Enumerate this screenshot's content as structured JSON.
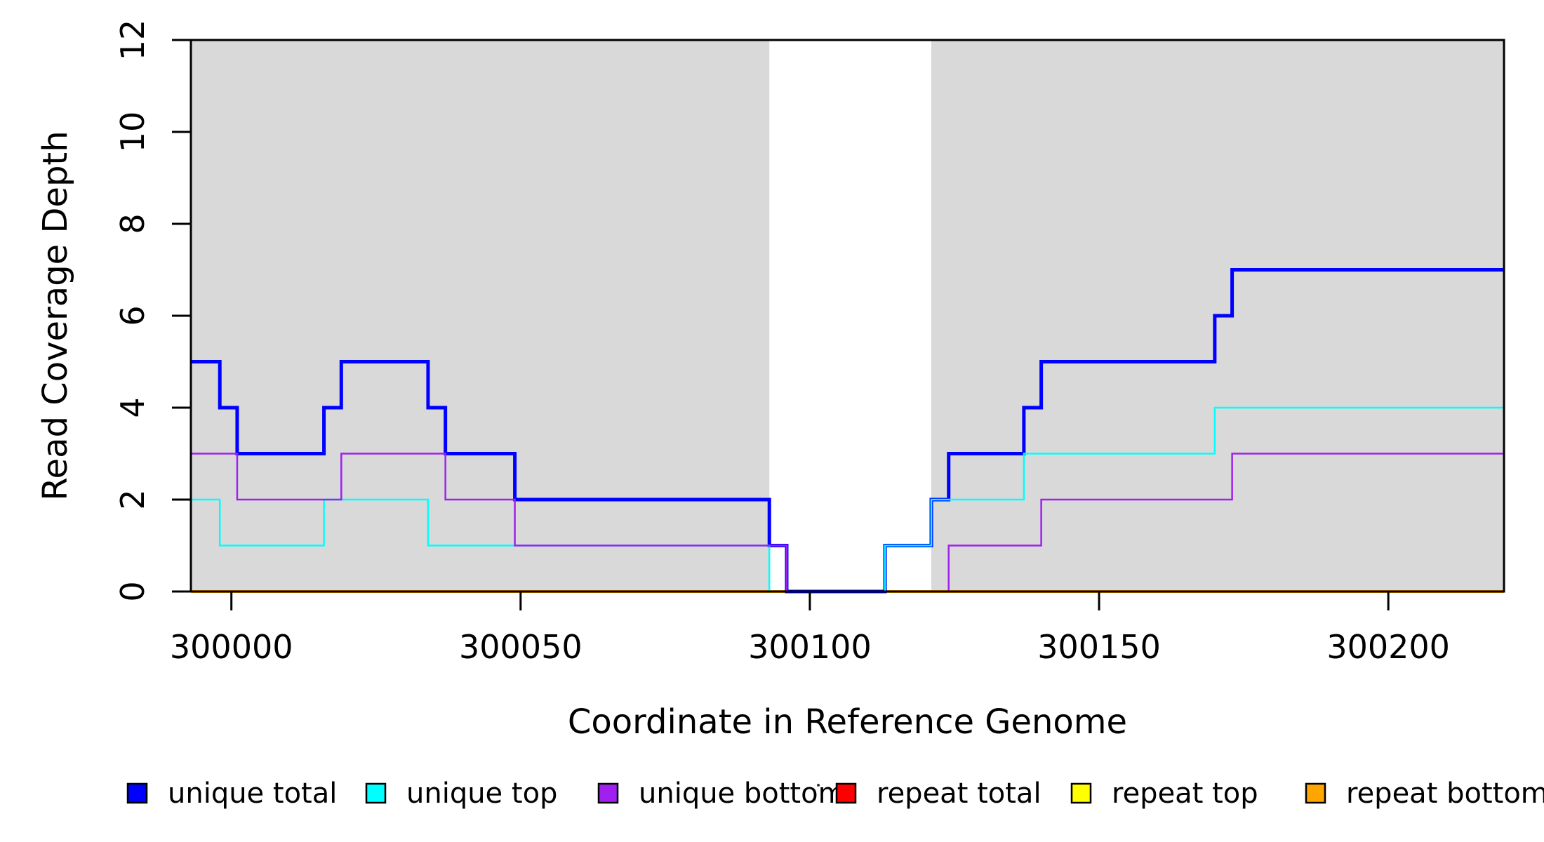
{
  "figure": {
    "background_color": "#FFFFFF",
    "panel_color": "#D9D9D9",
    "axis_color": "#000000"
  },
  "chart_data": {
    "type": "line",
    "style": "step",
    "title": "",
    "xlabel": "Coordinate in Reference Genome",
    "ylabel": "Read Coverage Depth",
    "x_range": [
      299993,
      300220
    ],
    "y_range": [
      0,
      12
    ],
    "x_ticks": [
      300000,
      300050,
      300100,
      300150,
      300200
    ],
    "y_ticks": [
      0,
      2,
      4,
      6,
      8,
      10,
      12
    ],
    "grid": false,
    "legend_position": "bottom",
    "shaded_regions": [
      {
        "x0": 299993,
        "x1": 300093
      },
      {
        "x0": 300121,
        "x1": 300220
      }
    ],
    "draw_order": [
      3,
      4,
      5,
      0,
      1,
      2
    ],
    "series": [
      {
        "name": "unique total",
        "color": "#0000FF",
        "line_width": 5,
        "steps": [
          [
            299993,
            5
          ],
          [
            299998,
            4
          ],
          [
            300001,
            3
          ],
          [
            300016,
            4
          ],
          [
            300019,
            5
          ],
          [
            300034,
            4
          ],
          [
            300037,
            3
          ],
          [
            300049,
            2
          ],
          [
            300093,
            1
          ],
          [
            300096,
            0
          ],
          [
            300113,
            1
          ],
          [
            300121,
            2
          ],
          [
            300124,
            3
          ],
          [
            300137,
            4
          ],
          [
            300140,
            5
          ],
          [
            300170,
            6
          ],
          [
            300173,
            7
          ]
        ]
      },
      {
        "name": "unique top",
        "color": "#00FFFF",
        "line_width": 2.5,
        "steps": [
          [
            299993,
            2
          ],
          [
            299998,
            1
          ],
          [
            300016,
            2
          ],
          [
            300034,
            1
          ],
          [
            300093,
            0
          ],
          [
            300113,
            1
          ],
          [
            300121,
            2
          ],
          [
            300137,
            3
          ],
          [
            300170,
            4
          ]
        ]
      },
      {
        "name": "unique bottom",
        "color": "#A020F0",
        "line_width": 2.5,
        "steps": [
          [
            299993,
            3
          ],
          [
            300001,
            2
          ],
          [
            300019,
            3
          ],
          [
            300037,
            2
          ],
          [
            300049,
            1
          ],
          [
            300096,
            0
          ],
          [
            300124,
            1
          ],
          [
            300140,
            2
          ],
          [
            300173,
            3
          ]
        ]
      },
      {
        "name": "repeat total",
        "color": "#FF0000",
        "line_width": 2.5,
        "steps": [
          [
            299993,
            0
          ]
        ]
      },
      {
        "name": "repeat top",
        "color": "#FFFF00",
        "line_width": 2.5,
        "steps": [
          [
            299993,
            0
          ]
        ]
      },
      {
        "name": "repeat bottom",
        "color": "#FFA500",
        "line_width": 4,
        "steps": [
          [
            299993,
            0
          ]
        ]
      }
    ]
  }
}
